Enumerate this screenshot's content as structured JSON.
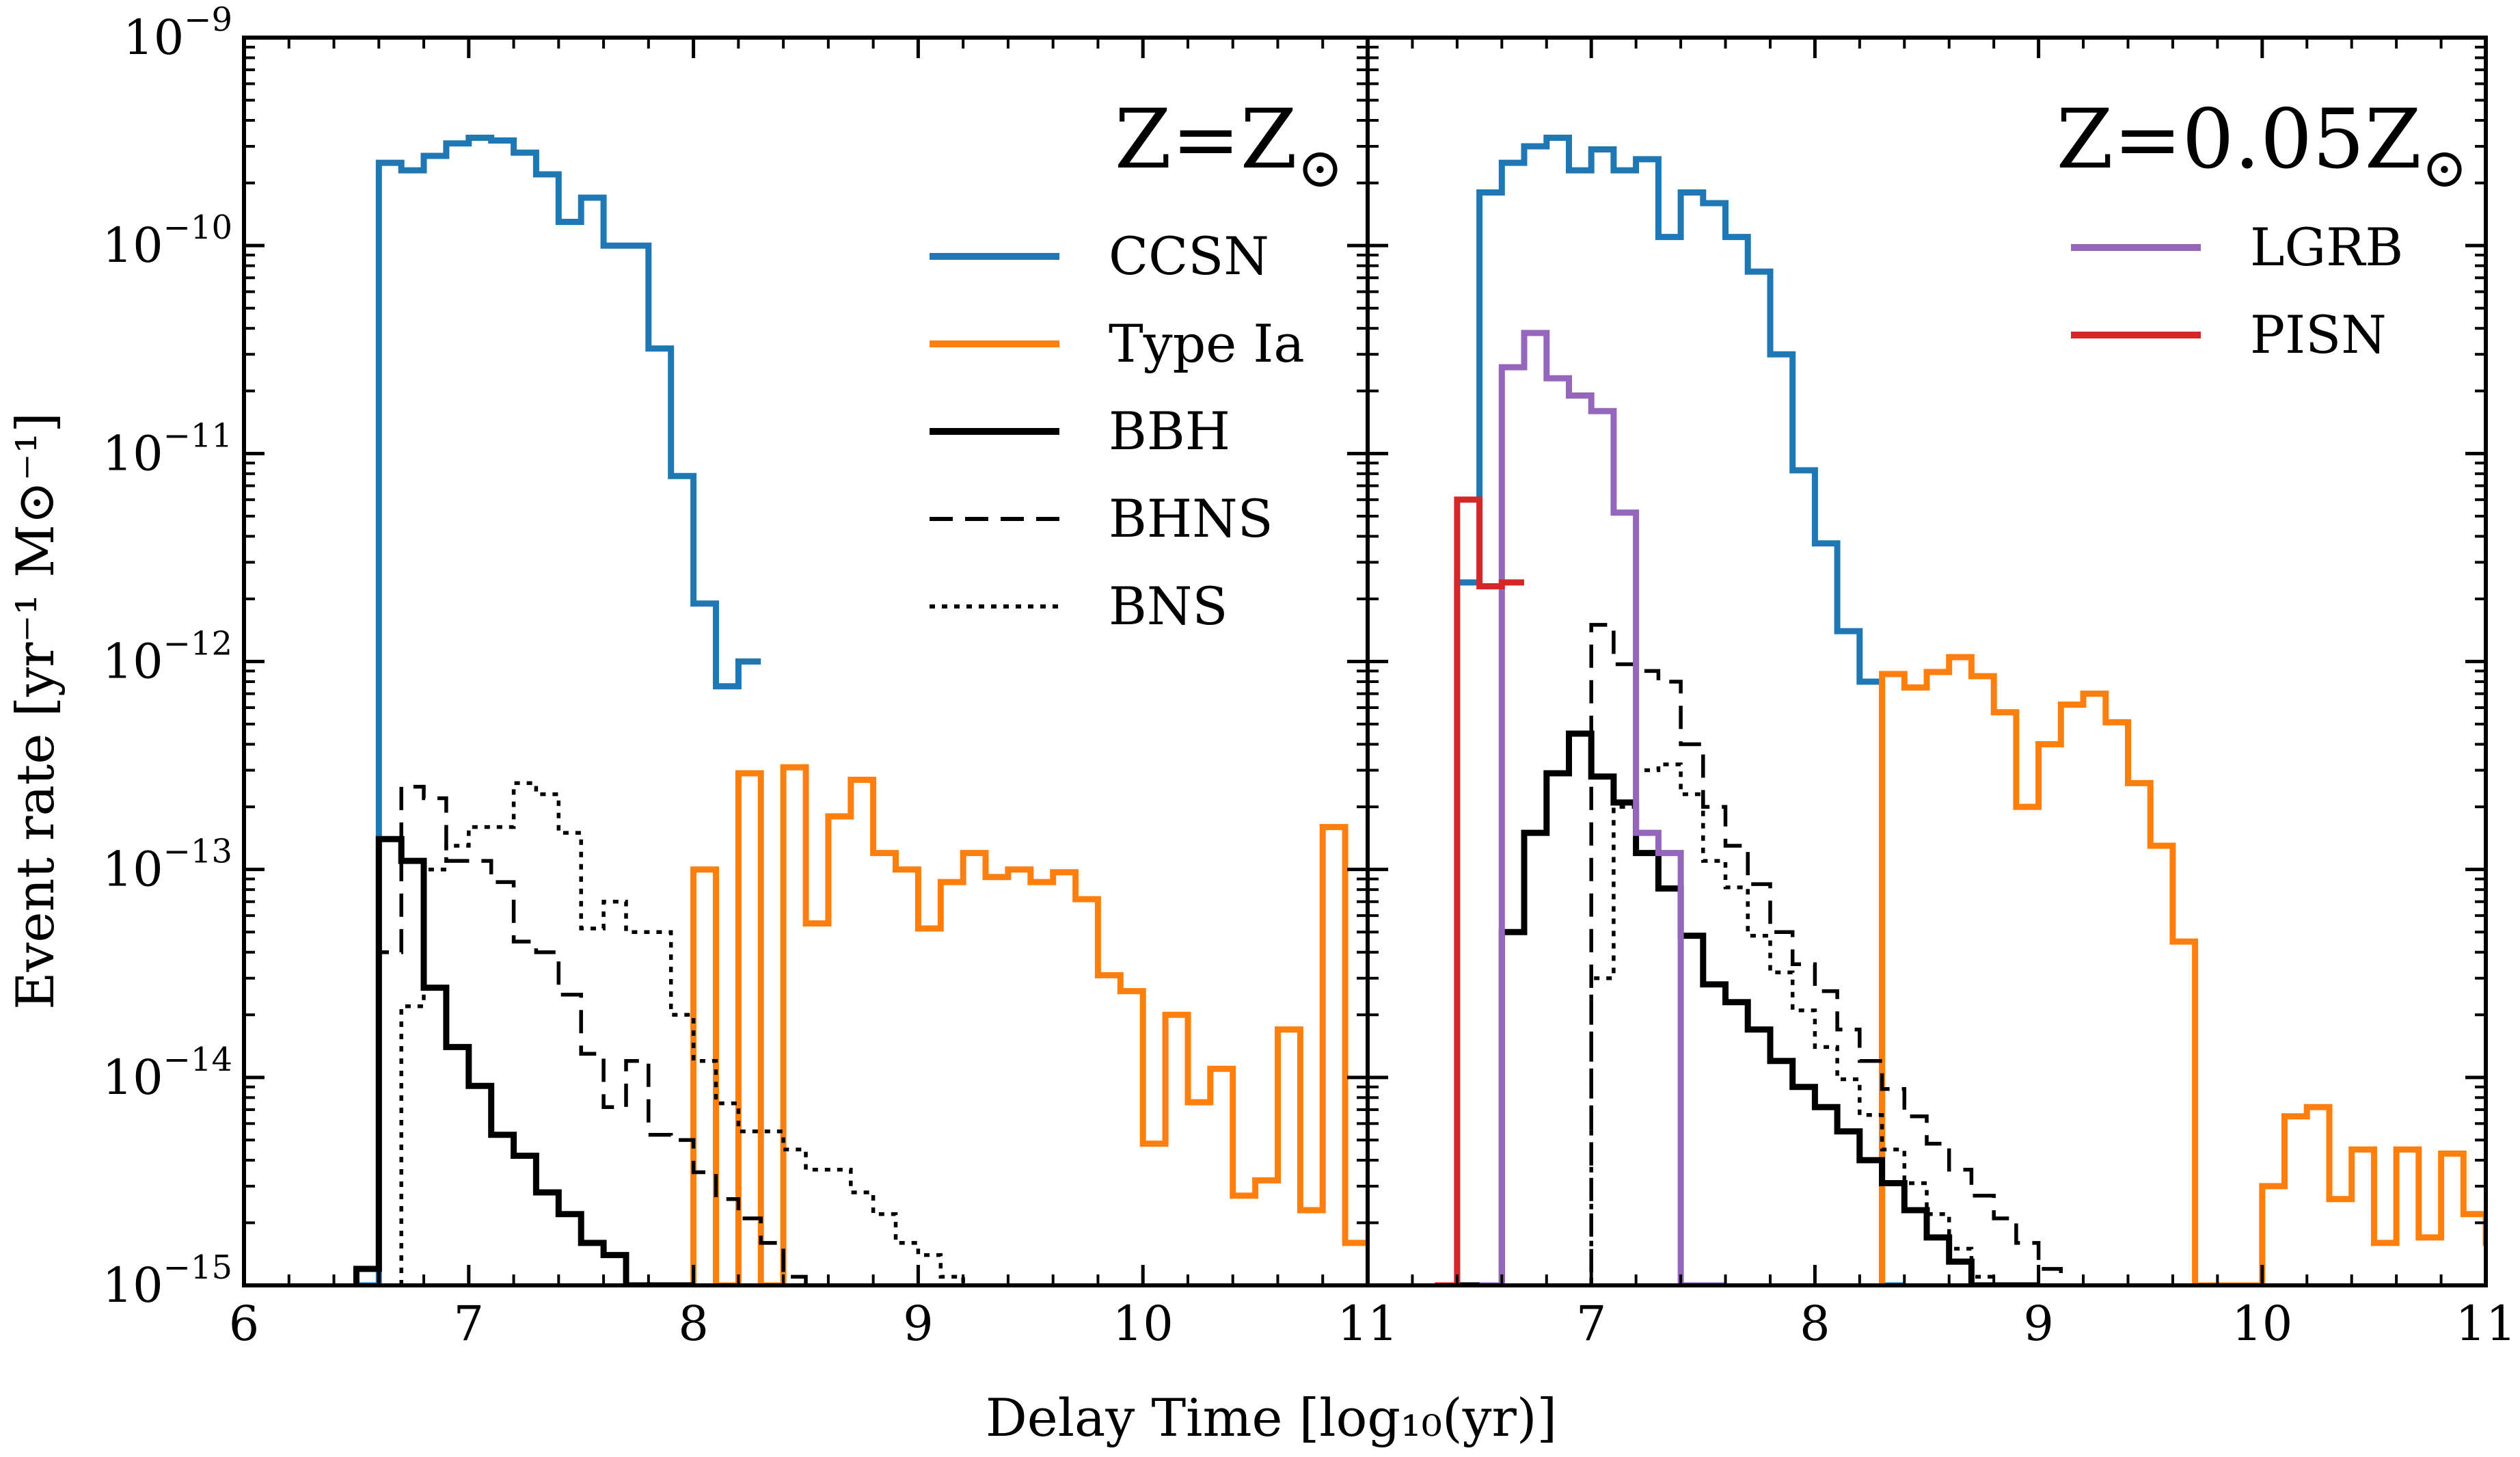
{
  "figure": {
    "y_axis_label": "Event rate [yr⁻¹ M⊙⁻¹]",
    "x_axis_label": "Delay Time [log₁₀(yr)]",
    "x_tick_labels": [
      "6",
      "7",
      "8",
      "9",
      "10",
      "11"
    ],
    "y_tick_labels": [
      {
        "base": "10",
        "exp": "−9"
      },
      {
        "base": "10",
        "exp": "−10"
      },
      {
        "base": "10",
        "exp": "−11"
      },
      {
        "base": "10",
        "exp": "−12"
      },
      {
        "base": "10",
        "exp": "−13"
      },
      {
        "base": "10",
        "exp": "−14"
      },
      {
        "base": "10",
        "exp": "−15"
      }
    ]
  },
  "chart_data": [
    {
      "type": "line",
      "step": "histogram",
      "title": "Z=Z⊙",
      "xlabel": "Delay Time [log₁₀(yr)]",
      "ylabel": "Event rate [yr⁻¹ M⊙⁻¹]",
      "xlim": [
        6,
        11
      ],
      "ylim": [
        1e-15,
        1e-09
      ],
      "yscale": "log",
      "legend_position": "upper right",
      "legend": [
        "CCSN",
        "Type Ia",
        "BBH",
        "BHNS",
        "BNS"
      ],
      "series": [
        {
          "name": "CCSN",
          "color": "#1f77b4",
          "style": "solid",
          "x": [
            6.5,
            6.6,
            6.7,
            6.8,
            6.9,
            7.0,
            7.1,
            7.2,
            7.3,
            7.4,
            7.5,
            7.6,
            7.7,
            7.8,
            7.9,
            8.0,
            8.1,
            8.2
          ],
          "y": [
            1e-15,
            2.5e-10,
            2.3e-10,
            2.7e-10,
            3.1e-10,
            3.3e-10,
            3.2e-10,
            2.8e-10,
            2.2e-10,
            1.3e-10,
            1.7e-10,
            1e-10,
            1e-10,
            3.2e-11,
            7.8e-12,
            1.9e-12,
            7.6e-13,
            1e-12
          ]
        },
        {
          "name": "Type Ia",
          "color": "#ff7f0e",
          "style": "solid",
          "x": [
            8.0,
            8.1,
            8.2,
            8.3,
            8.4,
            8.5,
            8.6,
            8.7,
            8.8,
            8.9,
            9.0,
            9.1,
            9.2,
            9.3,
            9.4,
            9.5,
            9.6,
            9.7,
            9.8,
            9.9,
            10.0,
            10.1,
            10.2,
            10.3,
            10.4,
            10.5,
            10.6,
            10.7,
            10.8,
            10.9,
            11.0
          ],
          "y": [
            1e-13,
            1e-15,
            2.9e-13,
            1e-15,
            3.1e-13,
            5.5e-14,
            1.8e-13,
            2.7e-13,
            1.2e-13,
            1e-13,
            5.2e-14,
            8.7e-14,
            1.2e-13,
            9.2e-14,
            1e-13,
            8.7e-14,
            9.7e-14,
            7.2e-14,
            3.1e-14,
            2.6e-14,
            4.8e-15,
            2e-14,
            7.6e-15,
            1.1e-14,
            2.7e-15,
            3.2e-15,
            1.7e-14,
            2.3e-15,
            1.6e-13,
            1.6e-15,
            1.6e-15
          ]
        },
        {
          "name": "BBH",
          "color": "#000000",
          "style": "solid",
          "x": [
            6.5,
            6.6,
            6.7,
            6.8,
            6.9,
            7.0,
            7.1,
            7.2,
            7.3,
            7.4,
            7.5,
            7.6,
            7.7,
            7.8,
            7.9
          ],
          "y": [
            1.2e-15,
            1.4e-13,
            1.1e-13,
            2.7e-14,
            1.4e-14,
            9.1e-15,
            5.3e-15,
            4.2e-15,
            2.8e-15,
            2.2e-15,
            1.6e-15,
            1.4e-15,
            1e-15,
            1e-15,
            1e-15
          ]
        },
        {
          "name": "BHNS",
          "color": "#000000",
          "style": "dashed",
          "x": [
            6.6,
            6.7,
            6.8,
            6.9,
            7.0,
            7.1,
            7.2,
            7.3,
            7.4,
            7.5,
            7.6,
            7.7,
            7.8,
            7.9,
            8.0,
            8.1,
            8.2,
            8.3,
            8.4,
            8.5
          ],
          "y": [
            4e-14,
            2.5e-13,
            2.2e-13,
            1.1e-13,
            1.1e-13,
            8.7e-14,
            4.5e-14,
            4e-14,
            2.5e-14,
            1.3e-14,
            7.2e-15,
            1.2e-14,
            5.3e-15,
            5e-15,
            3.5e-15,
            2.6e-15,
            2.1e-15,
            1.6e-15,
            1.1e-15,
            1e-15
          ]
        },
        {
          "name": "BNS",
          "color": "#000000",
          "style": "dotted",
          "x": [
            6.7,
            6.8,
            6.9,
            7.0,
            7.1,
            7.2,
            7.3,
            7.4,
            7.5,
            7.6,
            7.7,
            7.8,
            7.9,
            8.0,
            8.1,
            8.2,
            8.3,
            8.4,
            8.5,
            8.6,
            8.7,
            8.8,
            8.9,
            9.0,
            9.1,
            9.2
          ],
          "y": [
            2.2e-14,
            1e-13,
            1.3e-13,
            1.6e-13,
            1.6e-13,
            2.6e-13,
            2.3e-13,
            1.5e-13,
            5.2e-14,
            7e-14,
            5e-14,
            5e-14,
            2e-14,
            1.2e-14,
            7.5e-15,
            5.5e-15,
            5.5e-15,
            4.5e-15,
            3.6e-15,
            3.6e-15,
            2.8e-15,
            2.2e-15,
            1.6e-15,
            1.4e-15,
            1.1e-15,
            1e-15
          ]
        }
      ]
    },
    {
      "type": "line",
      "step": "histogram",
      "title": "Z=0.05Z⊙",
      "xlabel": "Delay Time [log₁₀(yr)]",
      "xlim": [
        6,
        11
      ],
      "ylim": [
        1e-15,
        1e-09
      ],
      "yscale": "log",
      "legend_position": "upper right",
      "legend": [
        "LGRB",
        "PISN"
      ],
      "series": [
        {
          "name": "CCSN",
          "color": "#1f77b4",
          "style": "solid",
          "x": [
            6.4,
            6.5,
            6.6,
            6.7,
            6.8,
            6.9,
            7.0,
            7.1,
            7.2,
            7.3,
            7.4,
            7.5,
            7.6,
            7.7,
            7.8,
            7.9,
            8.0,
            8.1,
            8.2,
            8.3
          ],
          "y": [
            2.4e-12,
            1.8e-10,
            2.5e-10,
            3e-10,
            3.3e-10,
            2.3e-10,
            2.9e-10,
            2.3e-10,
            2.6e-10,
            1.1e-10,
            1.8e-10,
            1.6e-10,
            1.1e-10,
            7.5e-11,
            3e-11,
            8.3e-12,
            3.7e-12,
            1.4e-12,
            8e-13,
            1e-15
          ]
        },
        {
          "name": "Type Ia",
          "color": "#ff7f0e",
          "style": "solid",
          "x": [
            8.3,
            8.4,
            8.5,
            8.6,
            8.7,
            8.8,
            8.9,
            9.0,
            9.1,
            9.2,
            9.3,
            9.4,
            9.5,
            9.6,
            9.7,
            9.8,
            9.9,
            10.0,
            10.1,
            10.2,
            10.3,
            10.4,
            10.5,
            10.6,
            10.7,
            10.8,
            10.9,
            11.0
          ],
          "y": [
            8.7e-13,
            7.5e-13,
            8.9e-13,
            1.05e-12,
            8.5e-13,
            5.7e-13,
            2e-13,
            4e-13,
            6.2e-13,
            7e-13,
            5.1e-13,
            2.6e-13,
            1.3e-13,
            4.5e-14,
            1e-15,
            1e-15,
            1e-15,
            3e-15,
            6.5e-15,
            7.2e-15,
            2.6e-15,
            4.5e-15,
            1.6e-15,
            4.5e-15,
            1.7e-15,
            4.3e-15,
            2.2e-15,
            1.6e-15
          ]
        },
        {
          "name": "BBH",
          "color": "#000000",
          "style": "solid",
          "x": [
            6.4,
            6.5,
            6.6,
            6.7,
            6.8,
            6.9,
            7.0,
            7.1,
            7.2,
            7.3,
            7.4,
            7.5,
            7.6,
            7.7,
            7.8,
            7.9,
            8.0,
            8.1,
            8.2,
            8.3,
            8.4,
            8.5,
            8.6,
            8.7,
            8.8,
            8.9
          ],
          "y": [
            1e-15,
            1e-15,
            5e-14,
            1.5e-13,
            2.9e-13,
            4.5e-13,
            2.8e-13,
            2.1e-13,
            1.2e-13,
            8.1e-14,
            4.8e-14,
            2.8e-14,
            2.3e-14,
            1.7e-14,
            1.2e-14,
            9e-15,
            7.2e-15,
            5.5e-15,
            4e-15,
            3.1e-15,
            2.3e-15,
            1.7e-15,
            1.3e-15,
            1e-15,
            1e-15,
            1e-15
          ]
        },
        {
          "name": "BHNS",
          "color": "#000000",
          "style": "dashed",
          "x": [
            6.9,
            7.0,
            7.1,
            7.2,
            7.3,
            7.4,
            7.5,
            7.6,
            7.7,
            7.8,
            7.9,
            8.0,
            8.1,
            8.2,
            8.3,
            8.4,
            8.5,
            8.6,
            8.7,
            8.8,
            8.9,
            9.0,
            9.1,
            9.2,
            9.3
          ],
          "y": [
            1e-15,
            1.5e-12,
            9.7e-13,
            9e-13,
            8e-13,
            4e-13,
            2e-13,
            1.3e-13,
            8.5e-14,
            5e-14,
            3.5e-14,
            2.6e-14,
            1.7e-14,
            1.2e-14,
            8.8e-15,
            6.5e-15,
            4.8e-15,
            3.6e-15,
            2.7e-15,
            2.1e-15,
            1.6e-15,
            1.2e-15,
            1e-15,
            1e-15,
            1e-15
          ]
        },
        {
          "name": "BNS",
          "color": "#000000",
          "style": "dotted",
          "x": [
            6.9,
            7.0,
            7.1,
            7.2,
            7.3,
            7.4,
            7.5,
            7.6,
            7.7,
            7.8,
            7.9,
            8.0,
            8.1,
            8.2,
            8.3,
            8.4,
            8.5,
            8.6,
            8.7,
            8.8,
            8.9
          ],
          "y": [
            1e-15,
            3e-14,
            2e-13,
            3e-13,
            3.2e-13,
            2.3e-13,
            1.1e-13,
            8.2e-14,
            4.8e-14,
            3.2e-14,
            2.1e-14,
            1.4e-14,
            9.8e-15,
            6.6e-15,
            4.5e-15,
            3.1e-15,
            2.2e-15,
            1.5e-15,
            1.1e-15,
            1e-15,
            1e-15
          ]
        },
        {
          "name": "LGRB",
          "color": "#9467bd",
          "style": "solid",
          "x": [
            6.5,
            6.6,
            6.7,
            6.8,
            6.9,
            7.0,
            7.1,
            7.2,
            7.3,
            7.4,
            7.5
          ],
          "y": [
            1e-15,
            2.6e-11,
            3.8e-11,
            2.3e-11,
            1.9e-11,
            1.6e-11,
            5.2e-12,
            1.5e-13,
            1.2e-13,
            1e-15,
            1e-15
          ]
        },
        {
          "name": "PISN",
          "color": "#d62728",
          "style": "solid",
          "x": [
            6.3,
            6.4,
            6.5,
            6.6
          ],
          "y": [
            1e-15,
            6e-12,
            2.3e-12,
            2.4e-12
          ]
        }
      ]
    }
  ]
}
